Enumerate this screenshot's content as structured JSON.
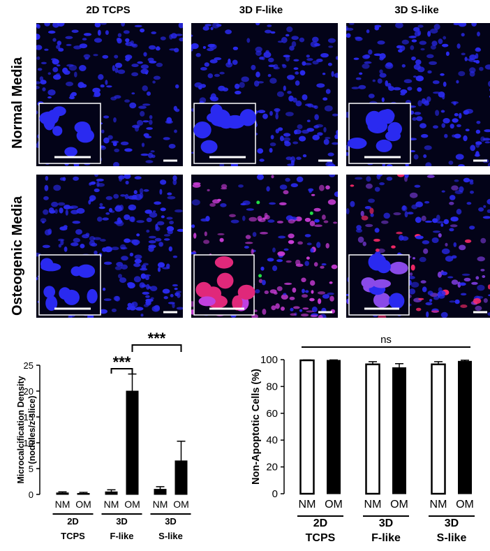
{
  "micrograph_grid": {
    "columns": [
      "2D TCPS",
      "3D F-like",
      "3D S-like"
    ],
    "rows": [
      "Normal Media",
      "Osteogenic Media"
    ],
    "colors": {
      "nuclei": "#2a2af0",
      "calcification": "#ff2a6a",
      "apoptosis": "#22dd44",
      "background": "#030318"
    }
  },
  "chart_data": [
    {
      "type": "bar",
      "ylabel": "Microcalcification Density\n(nodules/z-slice)",
      "ylim": [
        0,
        25
      ],
      "yticks": [
        0,
        5,
        10,
        15,
        20,
        25
      ],
      "groups": [
        {
          "line1": "2D",
          "line2": "TCPS"
        },
        {
          "line1": "3D",
          "line2": "F-like"
        },
        {
          "line1": "3D",
          "line2": "S-like"
        }
      ],
      "categories": [
        "NM",
        "OM",
        "NM",
        "OM",
        "NM",
        "OM"
      ],
      "values": [
        0.3,
        0.2,
        0.5,
        20.0,
        1.0,
        6.5
      ],
      "errors": [
        0.2,
        0.2,
        0.4,
        3.3,
        0.5,
        3.8
      ],
      "fills": [
        "filled",
        "filled",
        "filled",
        "filled",
        "filled",
        "filled"
      ],
      "significance": [
        {
          "from": 2,
          "to": 3,
          "label": "***"
        },
        {
          "from": 3,
          "to": 5,
          "label": "***"
        }
      ]
    },
    {
      "type": "bar",
      "ylabel": "Non-Apoptotic Cells (%)",
      "ylim": [
        0,
        100
      ],
      "yticks": [
        0,
        20,
        40,
        60,
        80,
        100
      ],
      "groups": [
        {
          "line1": "2D",
          "line2": "TCPS"
        },
        {
          "line1": "3D",
          "line2": "F-like"
        },
        {
          "line1": "3D",
          "line2": "S-like"
        }
      ],
      "categories": [
        "NM",
        "OM",
        "NM",
        "OM",
        "NM",
        "OM"
      ],
      "values": [
        99.5,
        99.5,
        96.5,
        94.0,
        96.5,
        98.8
      ],
      "errors": [
        0.3,
        0.3,
        2.0,
        3.0,
        2.0,
        0.8
      ],
      "fills": [
        "open",
        "filled",
        "open",
        "filled",
        "open",
        "filled"
      ],
      "significance_label": "ns"
    }
  ]
}
